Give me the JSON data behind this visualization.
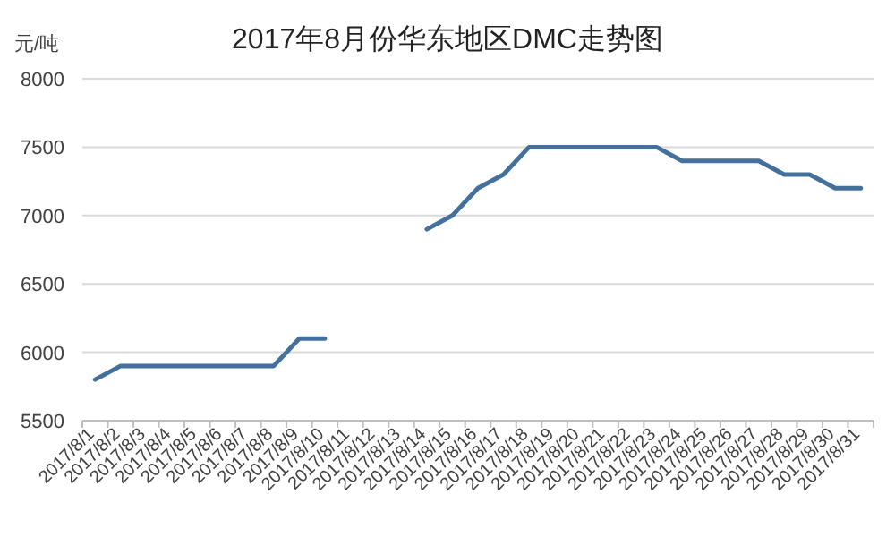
{
  "chart_data": {
    "type": "line",
    "title": "2017年8月份华东地区DMC走势图",
    "ylabel": "元/吨",
    "categories": [
      "2017/8/1",
      "2017/8/2",
      "2017/8/3",
      "2017/8/4",
      "2017/8/5",
      "2017/8/6",
      "2017/8/7",
      "2017/8/8",
      "2017/8/9",
      "2017/8/10",
      "2017/8/11",
      "2017/8/12",
      "2017/8/13",
      "2017/8/14",
      "2017/8/15",
      "2017/8/16",
      "2017/8/17",
      "2017/8/18",
      "2017/8/19",
      "2017/8/20",
      "2017/8/21",
      "2017/8/22",
      "2017/8/23",
      "2017/8/24",
      "2017/8/25",
      "2017/8/26",
      "2017/8/27",
      "2017/8/28",
      "2017/8/29",
      "2017/8/30",
      "2017/8/31"
    ],
    "series": [
      {
        "color": "#44709d",
        "values": [
          5800,
          5900,
          5900,
          5900,
          5900,
          5900,
          5900,
          5900,
          6100,
          6100,
          null,
          null,
          null,
          6900,
          7000,
          7200,
          7300,
          7500,
          7500,
          7500,
          7500,
          7500,
          7500,
          7400,
          7400,
          7400,
          7400,
          7300,
          7300,
          7200,
          7200
        ]
      }
    ],
    "ylim": [
      5500,
      8000
    ],
    "yticks": [
      5500,
      6000,
      6500,
      7000,
      7500,
      8000
    ],
    "grid": "y",
    "marker": "none",
    "line_style": "solid"
  }
}
